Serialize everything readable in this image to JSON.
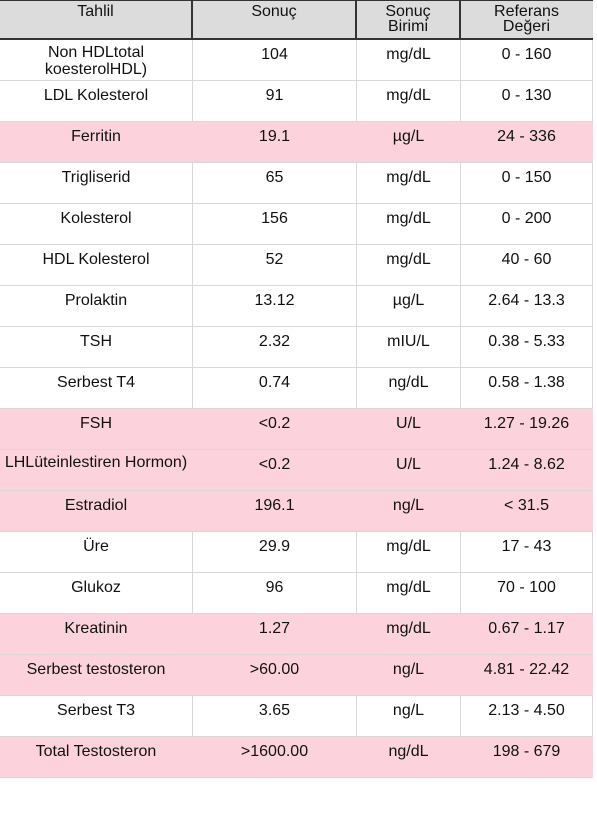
{
  "table": {
    "headers": [
      {
        "line1": "Tahlil",
        "line2": ""
      },
      {
        "line1": "Sonuç",
        "line2": ""
      },
      {
        "line1": "Sonuç",
        "line2": "Birimi"
      },
      {
        "line1": "Referans",
        "line2": "Değeri"
      }
    ],
    "highlight_color": "#fcd3dc",
    "rows": [
      {
        "test": "Non HDLtotal koesterolHDL)",
        "result": "104",
        "unit": "mg/dL",
        "reference": "0 - 160",
        "flagged": false
      },
      {
        "test": "LDL Kolesterol",
        "result": "91",
        "unit": "mg/dL",
        "reference": "0 - 130",
        "flagged": false
      },
      {
        "test": "Ferritin",
        "result": "19.1",
        "unit": "µg/L",
        "reference": "24 - 336",
        "flagged": true
      },
      {
        "test": "Trigliserid",
        "result": "65",
        "unit": "mg/dL",
        "reference": "0 - 150",
        "flagged": false
      },
      {
        "test": "Kolesterol",
        "result": "156",
        "unit": "mg/dL",
        "reference": "0 - 200",
        "flagged": false
      },
      {
        "test": "HDL Kolesterol",
        "result": "52",
        "unit": "mg/dL",
        "reference": "40 - 60",
        "flagged": false
      },
      {
        "test": "Prolaktin",
        "result": "13.12",
        "unit": "µg/L",
        "reference": "2.64 - 13.3",
        "flagged": false
      },
      {
        "test": "TSH",
        "result": "2.32",
        "unit": "mIU/L",
        "reference": "0.38 - 5.33",
        "flagged": false
      },
      {
        "test": "Serbest T4",
        "result": "0.74",
        "unit": "ng/dL",
        "reference": "0.58 - 1.38",
        "flagged": false
      },
      {
        "test": "FSH",
        "result": "<0.2",
        "unit": "U/L",
        "reference": "1.27 - 19.26",
        "flagged": true
      },
      {
        "test": "LHLüteinlestiren Hormon)",
        "result": "<0.2",
        "unit": "U/L",
        "reference": "1.24 - 8.62",
        "flagged": true
      },
      {
        "test": "Estradiol",
        "result": "196.1",
        "unit": "ng/L",
        "reference": "< 31.5",
        "flagged": true
      },
      {
        "test": "Üre",
        "result": "29.9",
        "unit": "mg/dL",
        "reference": "17 - 43",
        "flagged": false
      },
      {
        "test": "Glukoz",
        "result": "96",
        "unit": "mg/dL",
        "reference": "70 - 100",
        "flagged": false
      },
      {
        "test": "Kreatinin",
        "result": "1.27",
        "unit": "mg/dL",
        "reference": "0.67 - 1.17",
        "flagged": true
      },
      {
        "test": "Serbest testosteron",
        "result": ">60.00",
        "unit": "ng/L",
        "reference": "4.81 - 22.42",
        "flagged": true
      },
      {
        "test": "Serbest T3",
        "result": "3.65",
        "unit": "ng/L",
        "reference": "2.13 - 4.50",
        "flagged": false
      },
      {
        "test": "Total Testosteron",
        "result": ">1600.00",
        "unit": "ng/dL",
        "reference": "198 - 679",
        "flagged": true
      }
    ]
  }
}
